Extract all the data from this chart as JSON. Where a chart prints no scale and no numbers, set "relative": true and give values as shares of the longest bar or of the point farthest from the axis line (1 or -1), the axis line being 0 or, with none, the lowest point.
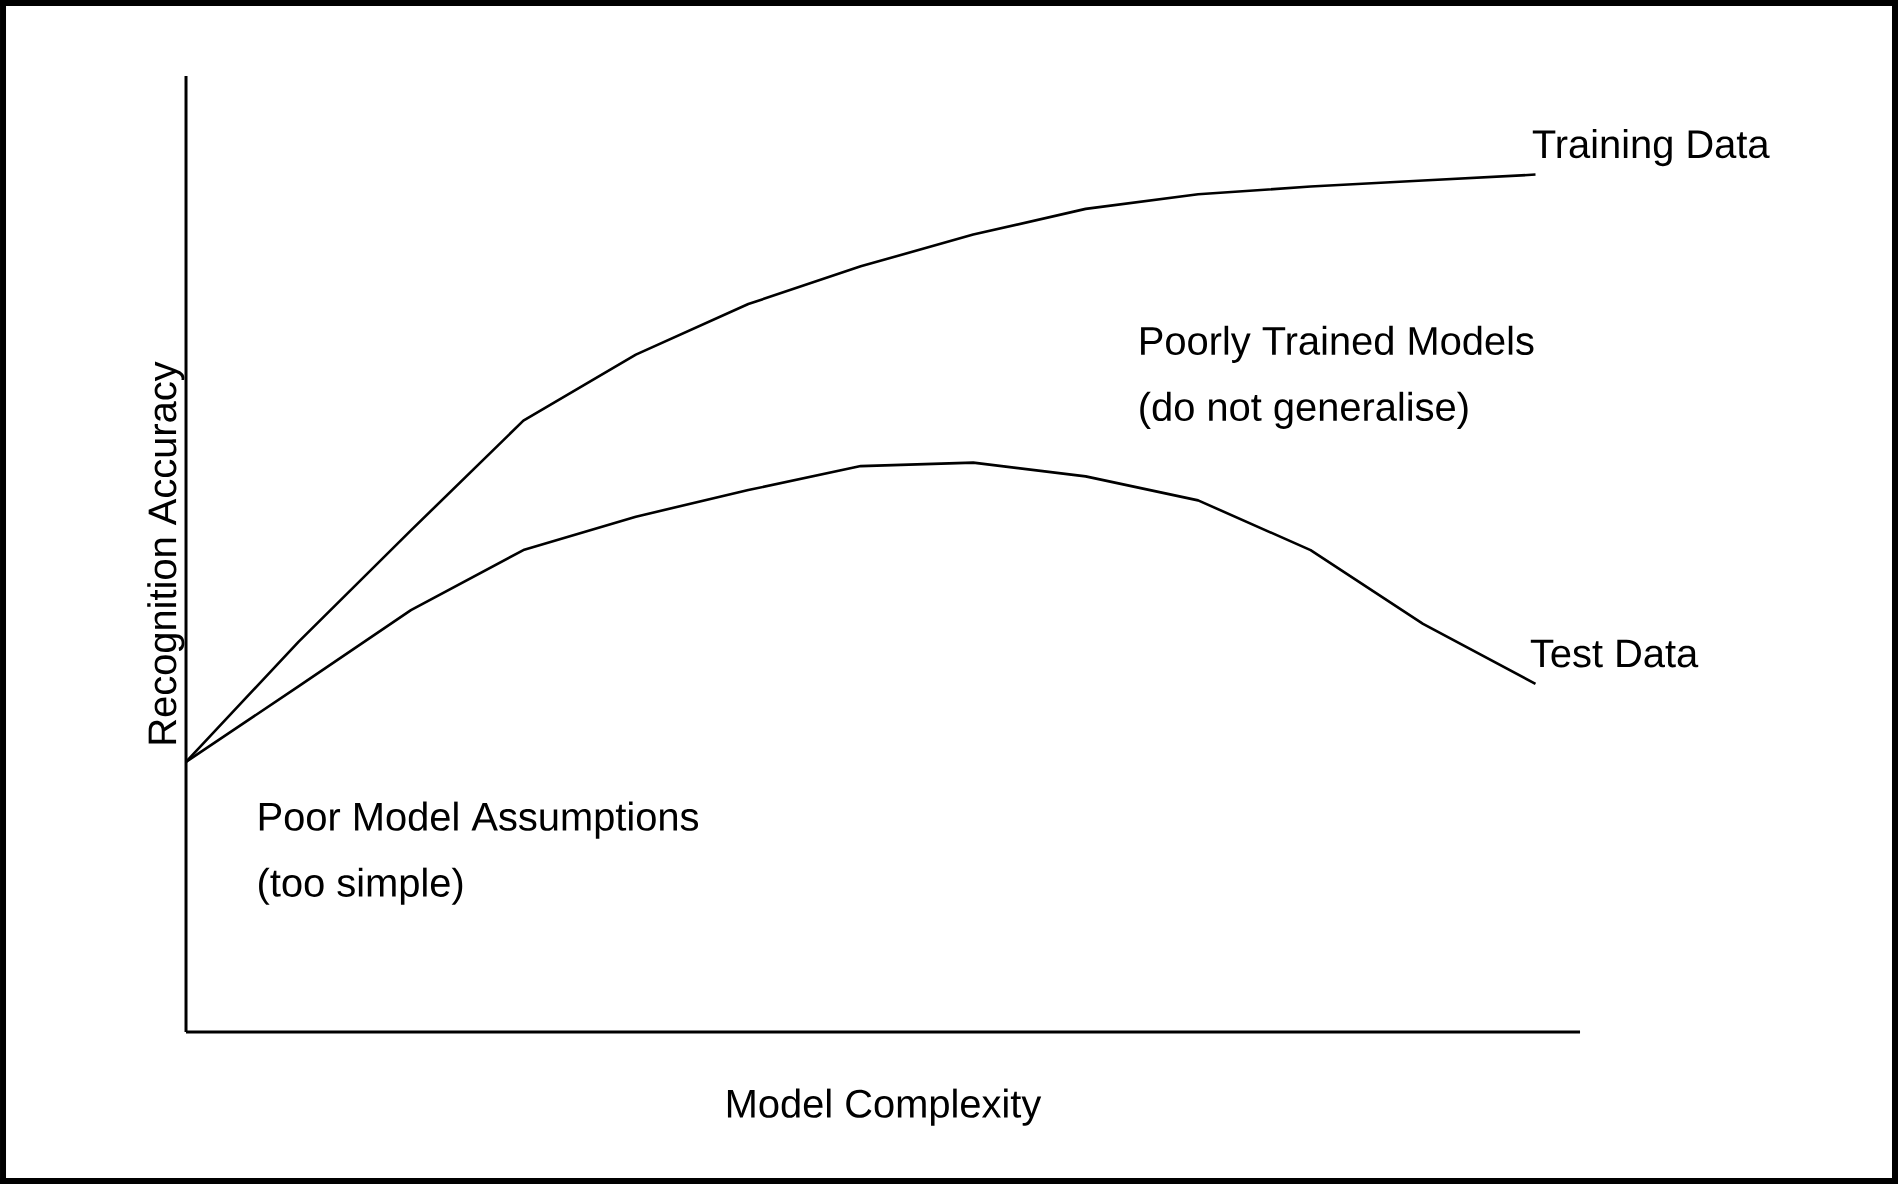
{
  "chart_data": {
    "type": "line",
    "relative": true,
    "xlabel": "Model Complexity",
    "ylabel": "Recognition Accuracy",
    "categories": [
      null,
      null,
      null,
      null,
      null,
      null,
      null,
      null,
      null,
      null,
      null,
      null,
      null
    ],
    "series": [
      {
        "name": "Training Data",
        "color": "#000000",
        "values": [
          0.315,
          0.455,
          0.585,
          0.713,
          0.79,
          0.849,
          0.893,
          0.93,
          0.96,
          0.977,
          0.986,
          0.993,
          1
        ]
      },
      {
        "name": "Test Data",
        "color": "#000000",
        "values": [
          0.315,
          0.403,
          0.492,
          0.562,
          0.601,
          0.632,
          0.66,
          0.664,
          0.648,
          0.62,
          0.562,
          0.476,
          0.406
        ]
      }
    ],
    "annotations": [
      "Poorly Trained Models",
      "(do not generalise)",
      "Poor Model Assumptions",
      "(too simple)"
    ],
    "marker": "none",
    "line_style": "solid"
  }
}
